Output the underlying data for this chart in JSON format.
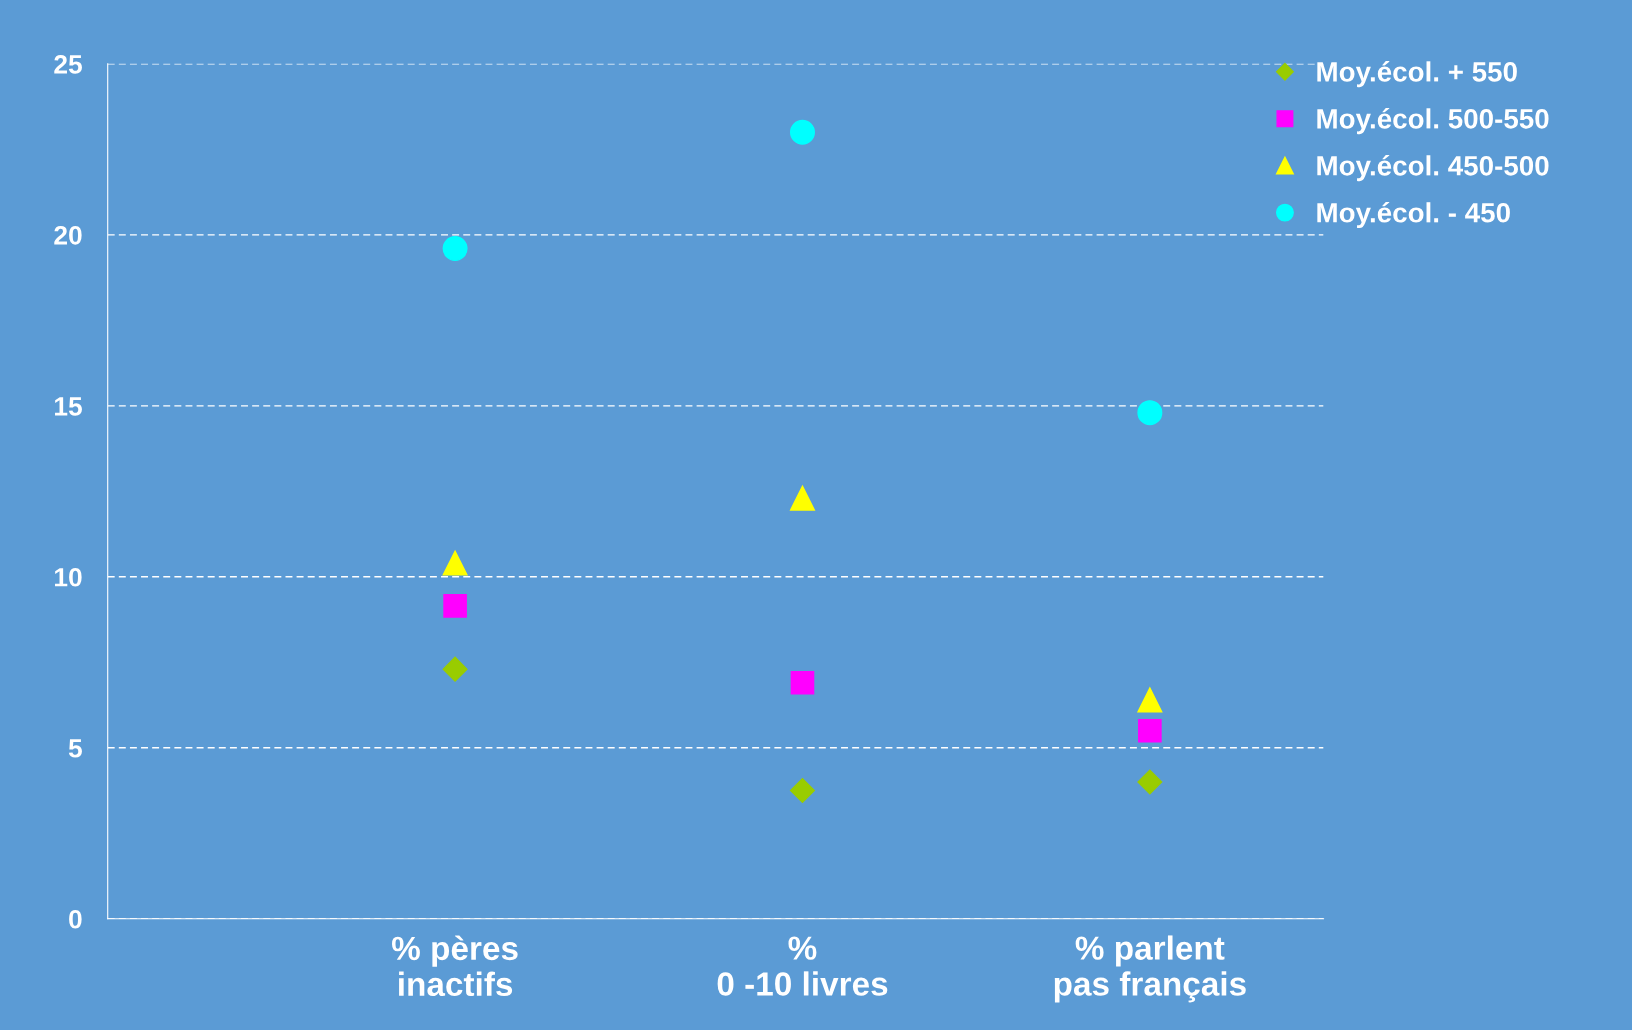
{
  "chart_data": {
    "type": "scatter",
    "categories": [
      "% pères\ninactifs",
      "%\n0 -10 livres",
      "% parlent\npas français"
    ],
    "series": [
      {
        "name": "Moy.écol. + 550",
        "color": "#99cc00",
        "marker": "diamond",
        "values": [
          7.3,
          3.75,
          4.0
        ]
      },
      {
        "name": "Moy.écol. 500-550",
        "color": "#ff00ff",
        "marker": "square",
        "values": [
          9.15,
          6.9,
          5.5
        ]
      },
      {
        "name": "Moy.écol. 450-500",
        "color": "#ffff00",
        "marker": "triangle",
        "values": [
          10.4,
          12.3,
          6.4
        ]
      },
      {
        "name": "Moy.écol. - 450",
        "color": "#00ffff",
        "marker": "circle",
        "values": [
          19.6,
          23.0,
          14.8
        ]
      }
    ],
    "ylim": [
      0,
      25
    ],
    "yticks": [
      0,
      5,
      10,
      15,
      20,
      25
    ],
    "grid": "y",
    "legend": "top right"
  }
}
